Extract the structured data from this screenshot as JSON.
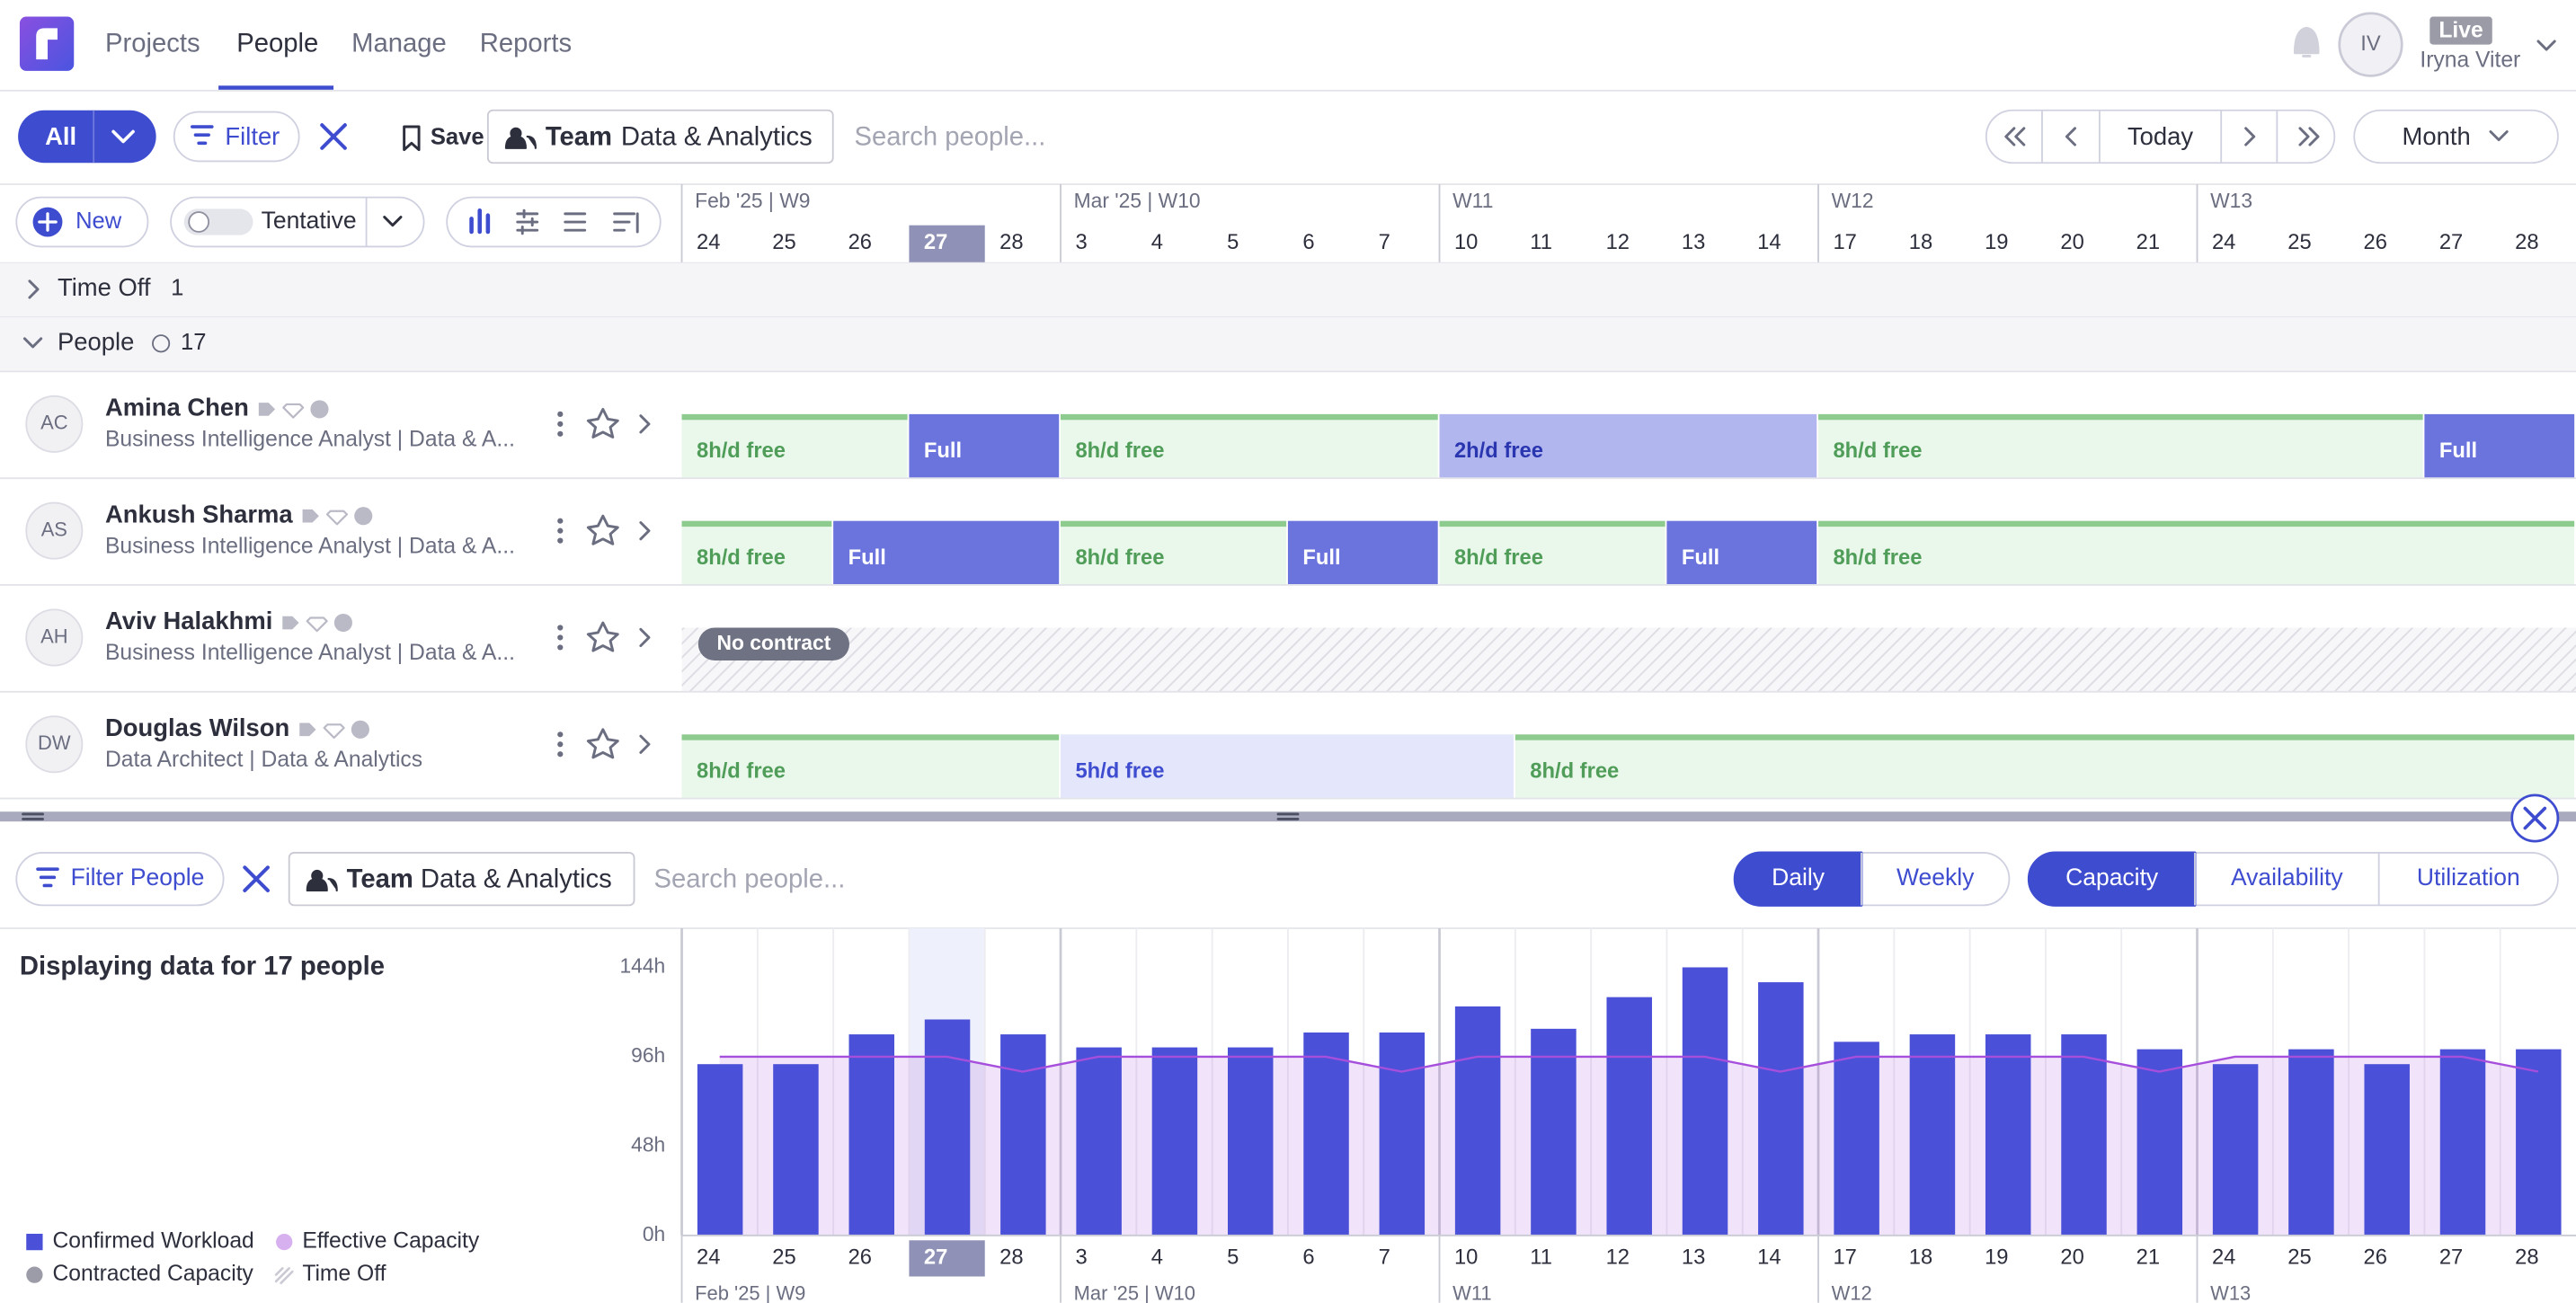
{
  "nav": {
    "tabs": [
      "Projects",
      "People",
      "Manage",
      "Reports"
    ],
    "active_tab": 1,
    "user": {
      "initials": "IV",
      "status": "Live",
      "name": "Iryna Viter"
    }
  },
  "toolbar": {
    "view": "All",
    "filter": "Filter",
    "save": "Save",
    "team_label": "Team",
    "team": "Data & Analytics",
    "search": "Search people...",
    "today": "Today",
    "period": "Month",
    "new": "New",
    "tentative": "Tentative"
  },
  "sections": [
    {
      "label": "Time Off",
      "count": 1,
      "expanded": false
    },
    {
      "label": "People",
      "count": 17,
      "expanded": true
    }
  ],
  "people": [
    {
      "initials": "AC",
      "name": "Amina Chen",
      "role": "Business Intelligence Analyst | Data & A...",
      "bookings": [
        {
          "label": "8h/d free",
          "days": 3,
          "kind": "free"
        },
        {
          "label": "Full",
          "days": 2,
          "kind": "full"
        },
        {
          "label": "8h/d free",
          "days": 5,
          "kind": "free"
        },
        {
          "label": "2h/d free",
          "days": 5,
          "kind": "low"
        },
        {
          "label": "8h/d free",
          "days": 8,
          "kind": "free"
        },
        {
          "label": "Full",
          "days": 2,
          "kind": "full"
        }
      ]
    },
    {
      "initials": "AS",
      "name": "Ankush Sharma",
      "role": "Business Intelligence Analyst | Data & A...",
      "bookings": [
        {
          "label": "8h/d free",
          "days": 2,
          "kind": "free"
        },
        {
          "label": "Full",
          "days": 3,
          "kind": "full"
        },
        {
          "label": "8h/d free",
          "days": 3,
          "kind": "free"
        },
        {
          "label": "Full",
          "days": 2,
          "kind": "full"
        },
        {
          "label": "8h/d free",
          "days": 3,
          "kind": "free"
        },
        {
          "label": "Full",
          "days": 2,
          "kind": "full"
        },
        {
          "label": "8h/d free",
          "days": 10,
          "kind": "free"
        }
      ]
    },
    {
      "initials": "AH",
      "name": "Aviv Halakhmi",
      "role": "Business Intelligence Analyst | Data & A...",
      "bookings": [
        {
          "label": "No contract",
          "days": 25,
          "kind": "none"
        }
      ]
    },
    {
      "initials": "DW",
      "name": "Douglas Wilson",
      "role": "Data Architect | Data & Analytics",
      "bookings": [
        {
          "label": "8h/d free",
          "days": 5,
          "kind": "free"
        },
        {
          "label": "5h/d free",
          "days": 6,
          "kind": "mid"
        },
        {
          "label": "8h/d free",
          "days": 14,
          "kind": "free"
        }
      ]
    }
  ],
  "bottom": {
    "filter": "Filter People",
    "team_label": "Team",
    "team": "Data & Analytics",
    "search": "Search people...",
    "modes": [
      "Daily",
      "Weekly"
    ],
    "active_mode": 0,
    "metrics": [
      "Capacity",
      "Availability",
      "Utilization"
    ],
    "active_metric": 0,
    "summary": "Displaying data for 17 people"
  },
  "chart_data": {
    "type": "bar",
    "categories": [
      "24",
      "25",
      "26",
      "27",
      "28",
      "3",
      "4",
      "5",
      "6",
      "7",
      "10",
      "11",
      "12",
      "13",
      "14",
      "17",
      "18",
      "19",
      "20",
      "21",
      "24",
      "25",
      "26",
      "27",
      "28"
    ],
    "weeks": [
      "Feb '25 | W9",
      "Mar '25 | W10",
      "W11",
      "W12",
      "W13"
    ],
    "highlight_index": 3,
    "series": [
      {
        "name": "Confirmed Workload",
        "color": "#4a50d7",
        "values": [
          92,
          92,
          108,
          116,
          108,
          101,
          101,
          101,
          109,
          109,
          123,
          111,
          128,
          144,
          136,
          104,
          108,
          108,
          108,
          100,
          92,
          100,
          92,
          100,
          100
        ]
      },
      {
        "name": "Effective Capacity",
        "color": "#a64fdc",
        "values": [
          96,
          96,
          96,
          96,
          88,
          96,
          96,
          96,
          96,
          88,
          96,
          96,
          96,
          96,
          88,
          96,
          96,
          96,
          96,
          88,
          96,
          96,
          96,
          96,
          88
        ]
      }
    ],
    "other_legend": [
      {
        "name": "Contracted Capacity",
        "color": "#9b9ca8"
      },
      {
        "name": "Time Off",
        "color": "#c9cad3"
      }
    ],
    "ylim": [
      0,
      165
    ],
    "yticks": [
      {
        "value": 0,
        "label": "0h"
      },
      {
        "value": 48,
        "label": "48h"
      },
      {
        "value": 96,
        "label": "96h"
      },
      {
        "value": 144,
        "label": "144h"
      }
    ],
    "grid": true
  }
}
